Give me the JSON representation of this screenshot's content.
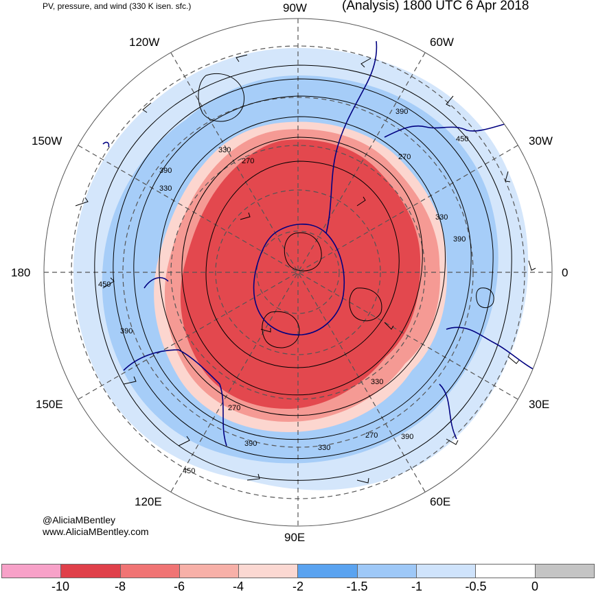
{
  "header": {
    "left_title": "PV, pressure, and wind (330 K isen. sfc.)",
    "right_title": "(Analysis) 1800 UTC 6 Apr 2018"
  },
  "longitude_labels": [
    "90W",
    "60W",
    "30W",
    "0",
    "30E",
    "60E",
    "90E",
    "120E",
    "150E",
    "180",
    "150W",
    "120W"
  ],
  "contour_labels": [
    "270",
    "330",
    "390",
    "450"
  ],
  "credit": {
    "handle": "@AliciaMBentley",
    "website": "www.AliciaMBentley.com"
  },
  "colorbar": {
    "colors": [
      "#f7a1c8",
      "#e0404a",
      "#f07474",
      "#f7b0a8",
      "#fbd8d2",
      "#5aa3f0",
      "#9ec8f7",
      "#cfe3fb",
      "#ffffff",
      "#c4c4c4"
    ],
    "ticks": [
      "-10",
      "-8",
      "-6",
      "-4",
      "-2",
      "-1.5",
      "-1",
      "-0.5",
      "0"
    ]
  },
  "palette": {
    "strong_pv": "#e3484e",
    "moderate_pv": "#f59a94",
    "weak_pv": "#fcd6cf",
    "blue_strong": "#5aa3f0",
    "blue_light": "#cfe3fb",
    "coast": "#000080"
  }
}
